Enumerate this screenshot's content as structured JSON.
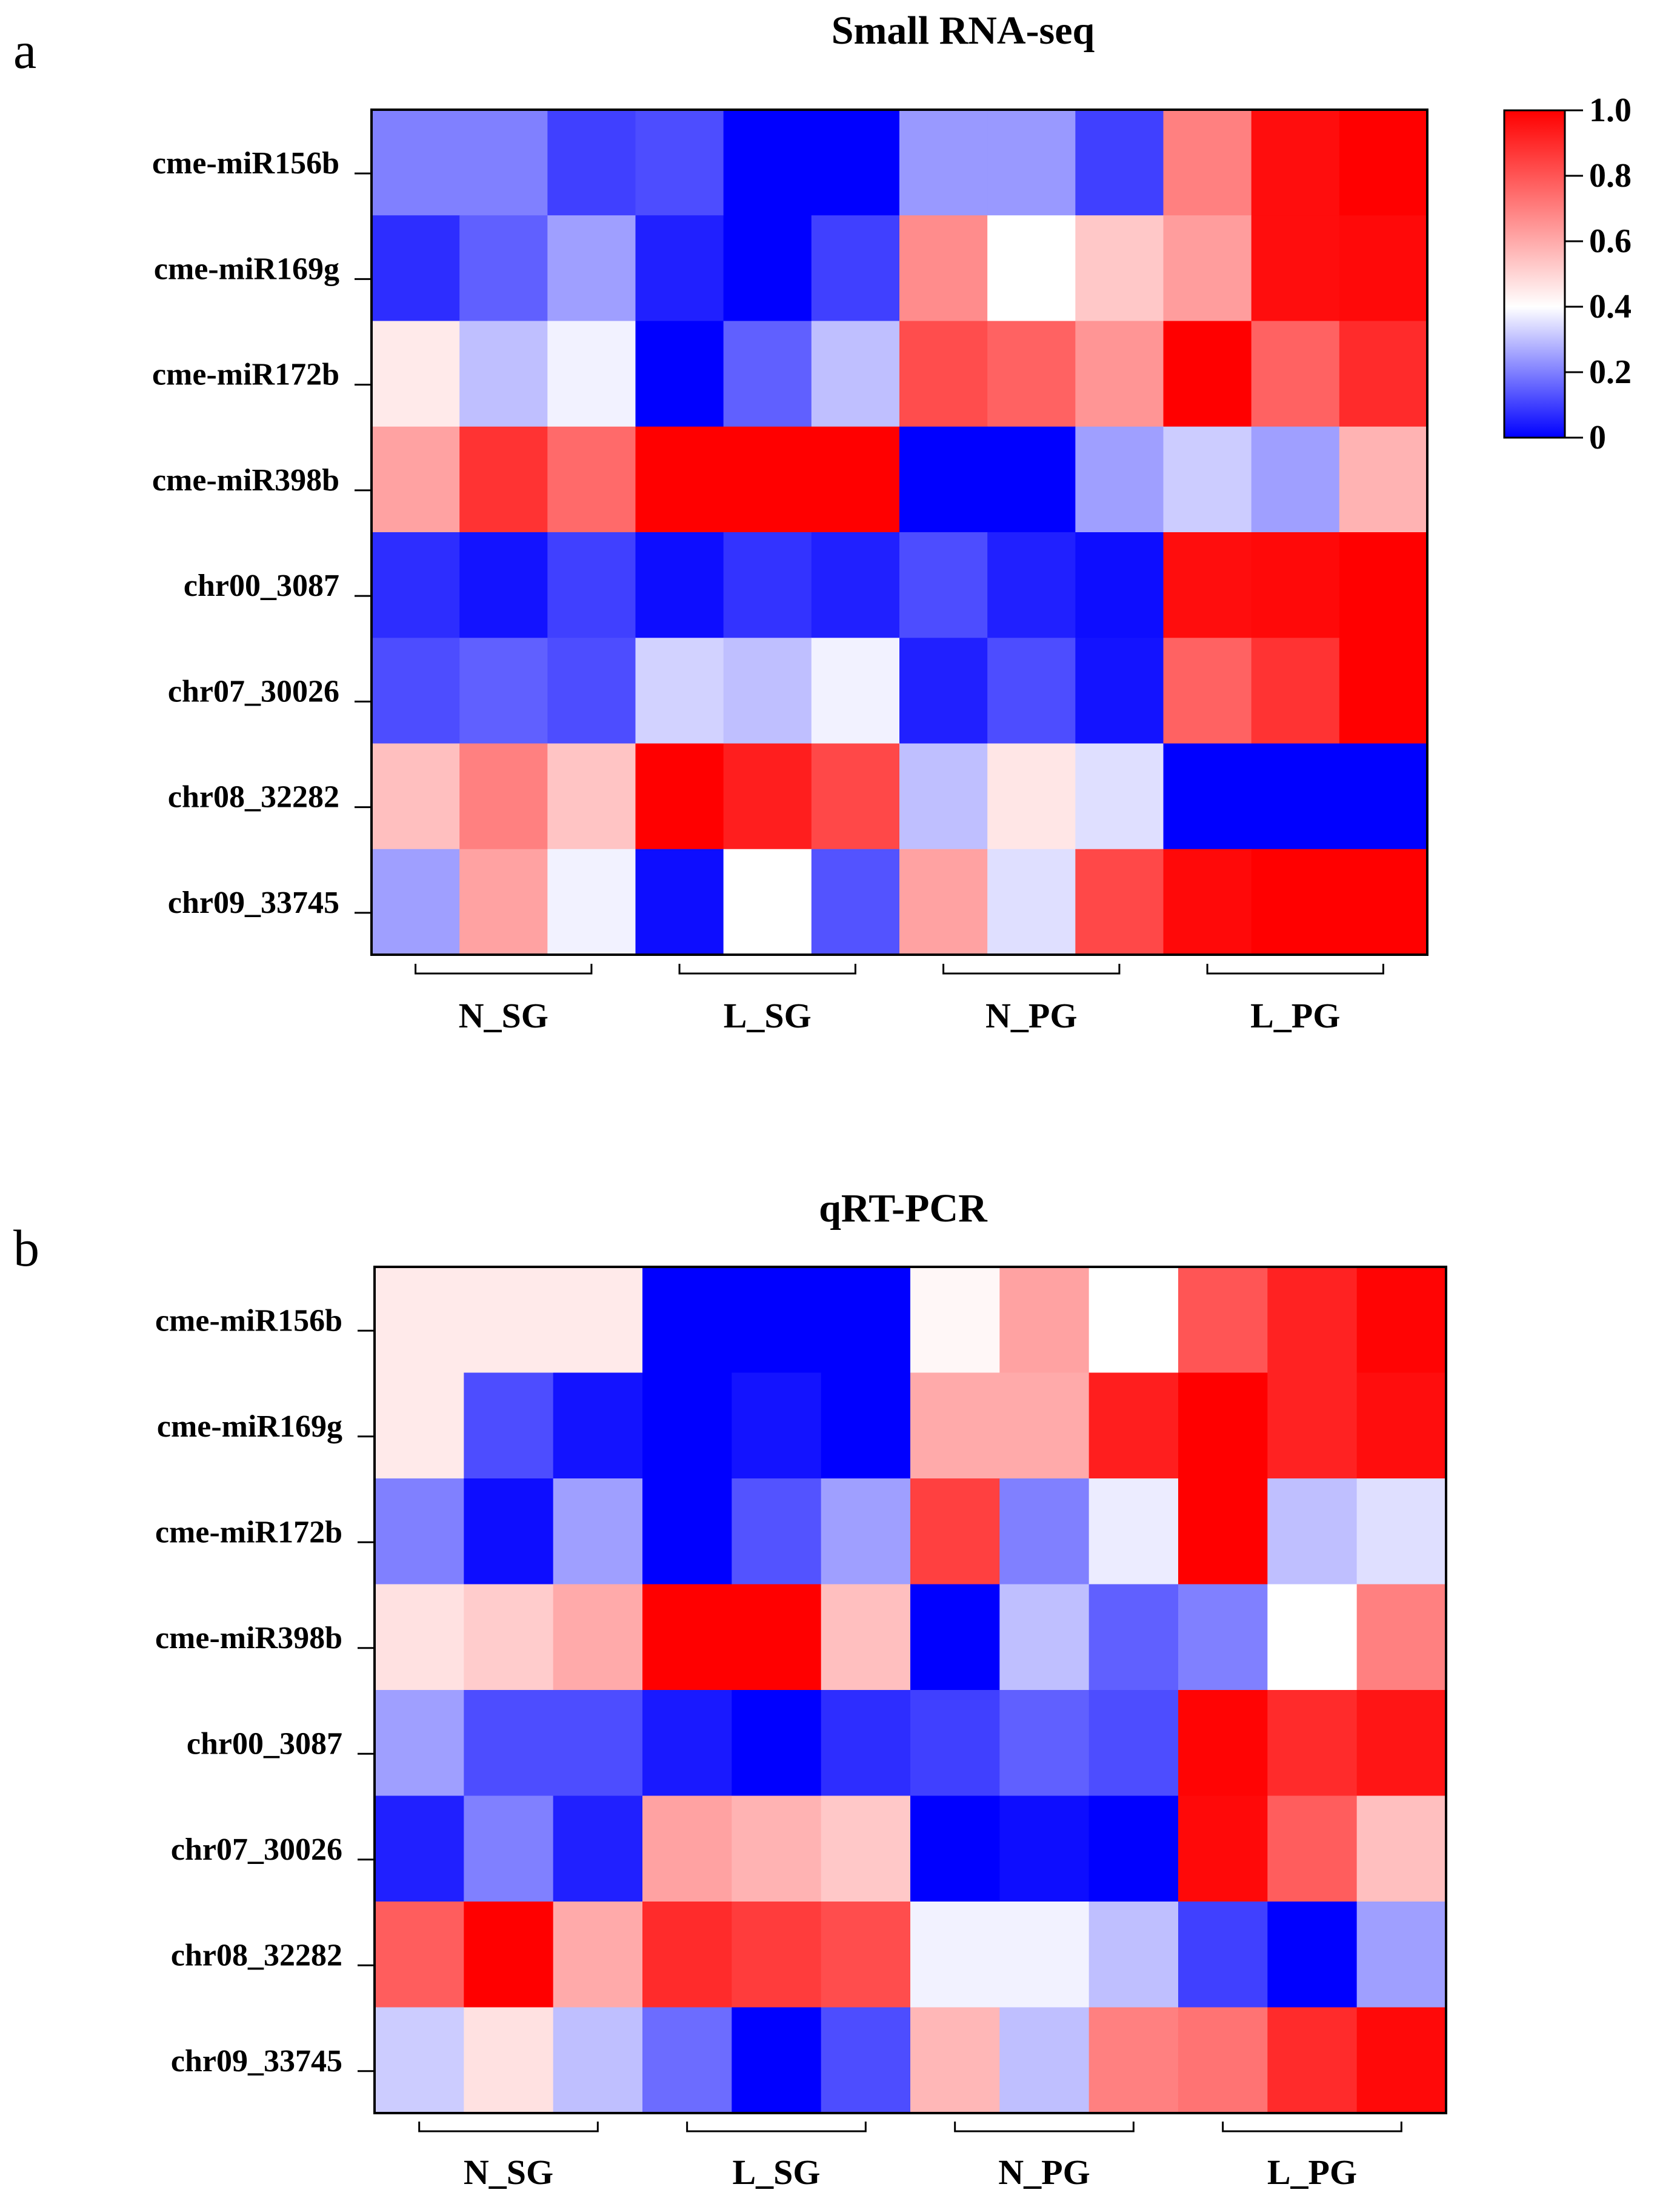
{
  "chart_data": [
    {
      "type": "heatmap",
      "panel": "a",
      "title": "Small RNA-seq",
      "rows": [
        "cme-miR156b",
        "cme-miR169g",
        "cme-miR172b",
        "cme-miR398b",
        "chr00_3087",
        "chr07_30026",
        "chr08_32282",
        "chr09_33745"
      ],
      "groups": [
        "N_SG",
        "L_SG",
        "N_PG",
        "L_PG"
      ],
      "values": [
        [
          0.2,
          0.2,
          0.1,
          0.12,
          0.0,
          0.0,
          0.24,
          0.24,
          0.1,
          0.7,
          0.97,
          1.0
        ],
        [
          0.07,
          0.15,
          0.25,
          0.05,
          0.0,
          0.1,
          0.67,
          0.4,
          0.53,
          0.63,
          0.97,
          0.98
        ],
        [
          0.45,
          0.3,
          0.38,
          0.0,
          0.15,
          0.3,
          0.82,
          0.77,
          0.65,
          1.0,
          0.77,
          0.9
        ],
        [
          0.62,
          0.88,
          0.75,
          1.0,
          1.0,
          1.0,
          0.0,
          0.0,
          0.25,
          0.32,
          0.25,
          0.58
        ],
        [
          0.07,
          0.03,
          0.1,
          0.02,
          0.08,
          0.05,
          0.12,
          0.05,
          0.02,
          0.97,
          0.98,
          1.0
        ],
        [
          0.12,
          0.15,
          0.12,
          0.33,
          0.3,
          0.38,
          0.05,
          0.12,
          0.03,
          0.77,
          0.88,
          1.0
        ],
        [
          0.55,
          0.7,
          0.54,
          1.0,
          0.93,
          0.83,
          0.3,
          0.46,
          0.35,
          0.0,
          0.0,
          0.0
        ],
        [
          0.25,
          0.62,
          0.38,
          0.02,
          0.4,
          0.13,
          0.62,
          0.35,
          0.83,
          0.98,
          1.0,
          1.0
        ]
      ],
      "colorbar": {
        "ticks": [
          "1.0",
          "0.8",
          "0.6",
          "0.4",
          "0.2",
          "0"
        ],
        "range": [
          0,
          1
        ]
      },
      "colors": {
        "low": "#0000ff",
        "mid": "#ffffff",
        "high": "#ff0000"
      }
    },
    {
      "type": "heatmap",
      "panel": "b",
      "title": "qRT-PCR",
      "rows": [
        "cme-miR156b",
        "cme-miR169g",
        "cme-miR172b",
        "cme-miR398b",
        "chr00_3087",
        "chr07_30026",
        "chr08_32282",
        "chr09_33745"
      ],
      "groups": [
        "N_SG",
        "L_SG",
        "N_PG",
        "L_PG"
      ],
      "values": [
        [
          0.45,
          0.45,
          0.45,
          0.0,
          0.0,
          0.0,
          0.42,
          0.62,
          0.4,
          0.8,
          0.92,
          0.99
        ],
        [
          0.45,
          0.12,
          0.03,
          0.0,
          0.03,
          0.0,
          0.6,
          0.6,
          0.93,
          1.0,
          0.92,
          0.97
        ],
        [
          0.2,
          0.02,
          0.25,
          0.0,
          0.13,
          0.25,
          0.85,
          0.2,
          0.37,
          1.0,
          0.3,
          0.35
        ],
        [
          0.47,
          0.52,
          0.6,
          1.0,
          1.0,
          0.55,
          0.0,
          0.3,
          0.15,
          0.2,
          0.4,
          0.7
        ],
        [
          0.25,
          0.12,
          0.12,
          0.04,
          0.0,
          0.07,
          0.1,
          0.15,
          0.12,
          0.99,
          0.9,
          0.95
        ],
        [
          0.05,
          0.2,
          0.05,
          0.62,
          0.58,
          0.53,
          0.0,
          0.02,
          0.0,
          0.98,
          0.78,
          0.55
        ],
        [
          0.78,
          1.0,
          0.6,
          0.9,
          0.86,
          0.82,
          0.38,
          0.38,
          0.3,
          0.1,
          0.0,
          0.25
        ],
        [
          0.32,
          0.47,
          0.3,
          0.17,
          0.0,
          0.12,
          0.57,
          0.3,
          0.7,
          0.73,
          0.9,
          0.98
        ]
      ],
      "colors": {
        "low": "#0000ff",
        "mid": "#ffffff",
        "high": "#ff0000"
      }
    }
  ]
}
